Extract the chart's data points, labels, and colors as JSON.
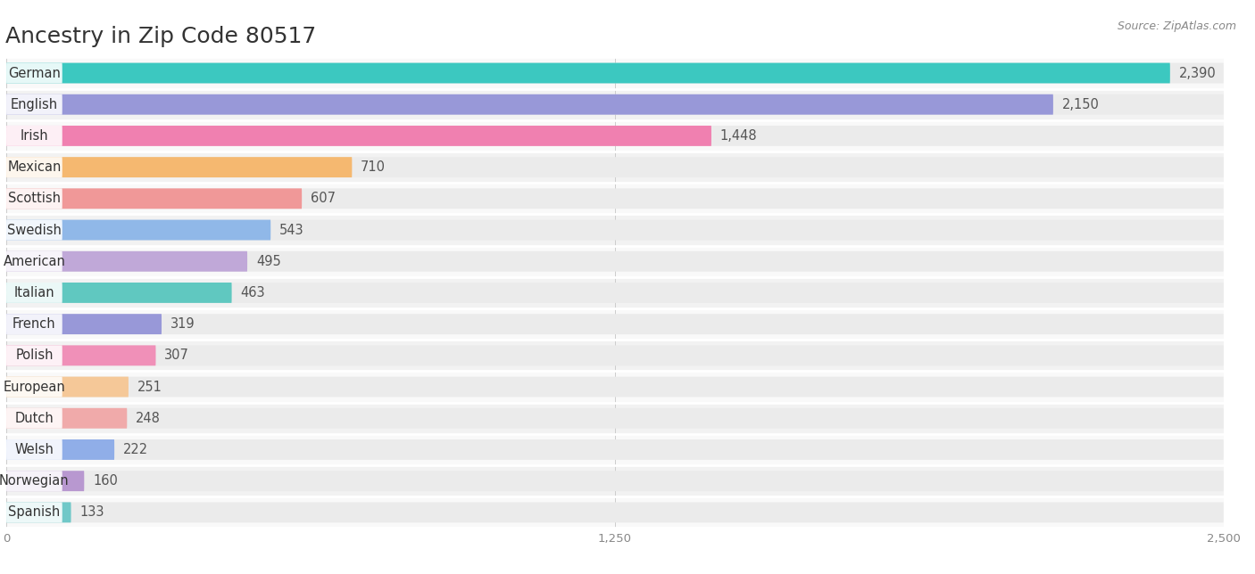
{
  "title": "Ancestry in Zip Code 80517",
  "source": "Source: ZipAtlas.com",
  "categories": [
    "German",
    "English",
    "Irish",
    "Mexican",
    "Scottish",
    "Swedish",
    "American",
    "Italian",
    "French",
    "Polish",
    "European",
    "Dutch",
    "Welsh",
    "Norwegian",
    "Spanish"
  ],
  "values": [
    2390,
    2150,
    1448,
    710,
    607,
    543,
    495,
    463,
    319,
    307,
    251,
    248,
    222,
    160,
    133
  ],
  "bar_colors": [
    "#3cc8c0",
    "#9898d8",
    "#f080b0",
    "#f5b870",
    "#f09898",
    "#90b8e8",
    "#c0a8d8",
    "#60c8c0",
    "#9898d8",
    "#f090b8",
    "#f5c898",
    "#f0aaaa",
    "#90aee8",
    "#b898d0",
    "#70c8c8"
  ],
  "xlim": [
    0,
    2500
  ],
  "xticks": [
    0,
    1250,
    2500
  ],
  "xtick_labels": [
    "0",
    "1,250",
    "2,500"
  ],
  "bg_color": "#ffffff",
  "bar_bg_color": "#ebebeb",
  "row_bg_colors": [
    "#f9f9f9",
    "#f2f2f2"
  ],
  "title_fontsize": 18,
  "label_fontsize": 10.5,
  "value_fontsize": 10.5
}
